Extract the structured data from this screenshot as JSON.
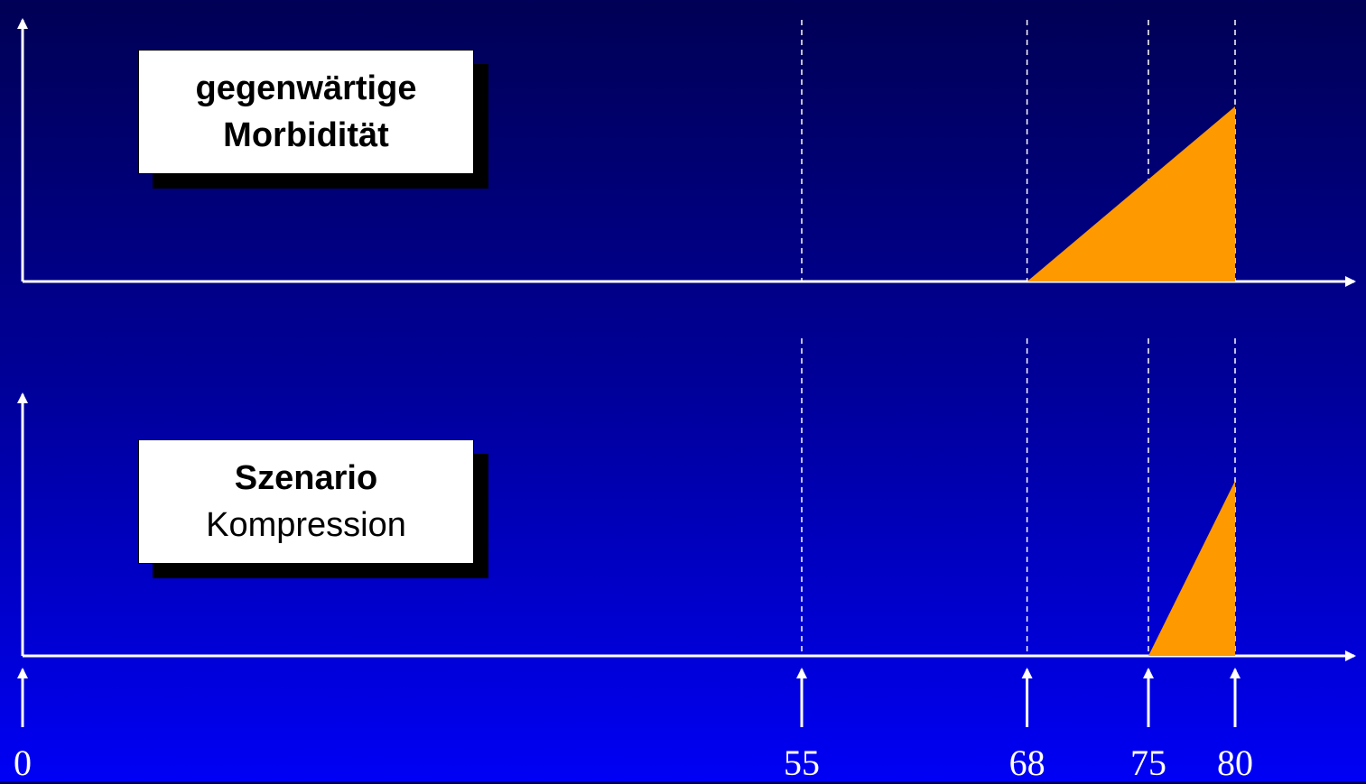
{
  "panels": [
    {
      "label_line1": "gegenwärtige",
      "label_line2": "Morbidität",
      "morbidity_start": 68,
      "morbidity_end": 80,
      "morbidity_peak": 1.0
    },
    {
      "label_line1": "Szenario",
      "label_line2": "Kompression",
      "morbidity_start": 75,
      "morbidity_end": 80,
      "morbidity_peak": 1.0
    }
  ],
  "age_markers": [
    {
      "value": 0,
      "label": "0"
    },
    {
      "value": 55,
      "label": "55"
    },
    {
      "value": 68,
      "label": "68"
    },
    {
      "value": 75,
      "label": "75"
    },
    {
      "value": 80,
      "label": "80"
    }
  ],
  "colors": {
    "fill": "#ff9900",
    "axis": "#ffffff"
  }
}
